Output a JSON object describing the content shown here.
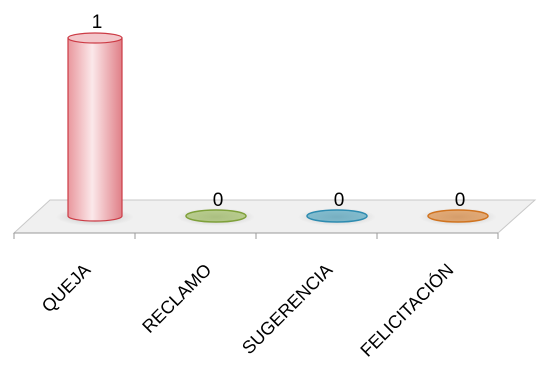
{
  "chart_data": {
    "type": "bar",
    "style": "3d-cylinder",
    "categories": [
      "QUEJA",
      "RECLAMO",
      "SUGERENCIA",
      "FELICITACIÓN"
    ],
    "values": [
      1,
      0,
      0,
      0
    ],
    "data_labels": [
      "1",
      "0",
      "0",
      "0"
    ],
    "ylim": [
      0,
      1
    ],
    "grid": false,
    "legend": "none",
    "colors": {
      "fills": [
        "#e7a6a9",
        "#9fbf5f",
        "#4fa6c2",
        "#e08a3c"
      ],
      "strokes": [
        "#cc3b45",
        "#7ea03a",
        "#2d8bb0",
        "#d0731f"
      ],
      "floor": "#f0f0f0",
      "floor_edge": "#c8c8c8",
      "axis": "#9a9a9a",
      "text": "#000000"
    }
  }
}
